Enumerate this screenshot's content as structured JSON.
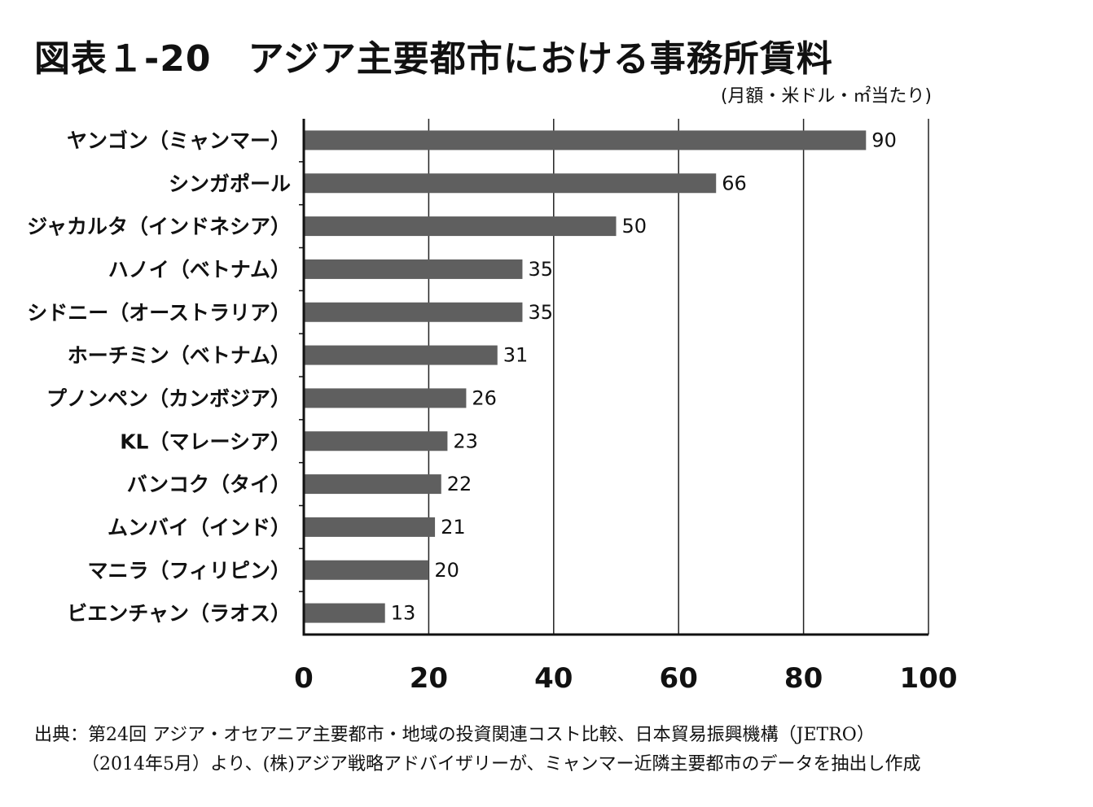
{
  "title": "図表１-20　アジア主要都市における事務所賃料",
  "unit_note": "(月額・米ドル・㎡当たり)",
  "source": {
    "line1": "出典：第24回 アジア・オセアニア主要都市・地域の投資関連コスト比較、日本貿易振興機構（JETRO）",
    "line2": "（2014年5月）より、(株)アジア戦略アドバイザリーが、ミャンマー近隣主要都市のデータを抽出し作成"
  },
  "chart_data": {
    "type": "bar",
    "orientation": "horizontal",
    "categories": [
      "ヤンゴン（ミャンマー）",
      "シンガポール",
      "ジャカルタ（インドネシア）",
      "ハノイ（ベトナム）",
      "シドニー（オーストラリア）",
      "ホーチミン（ベトナム）",
      "プノンペン（カンボジア）",
      "KL（マレーシア）",
      "バンコク（タイ）",
      "ムンバイ（インド）",
      "マニラ（フィリピン）",
      "ビエンチャン（ラオス）"
    ],
    "values": [
      90,
      66,
      50,
      35,
      35,
      31,
      26,
      23,
      22,
      21,
      20,
      13
    ],
    "xlim": [
      0,
      100
    ],
    "xticks": [
      0,
      20,
      40,
      60,
      80,
      100
    ],
    "grid": "vertical",
    "bar_color": "#5f5f5f"
  }
}
